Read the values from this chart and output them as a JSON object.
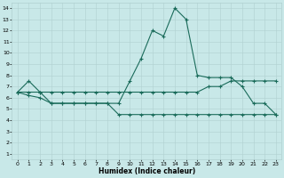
{
  "xlabel": "Humidex (Indice chaleur)",
  "xlim": [
    -0.5,
    23.5
  ],
  "ylim": [
    0.5,
    14.5
  ],
  "yticks": [
    1,
    2,
    3,
    4,
    5,
    6,
    7,
    8,
    9,
    10,
    11,
    12,
    13,
    14
  ],
  "xticks": [
    0,
    1,
    2,
    3,
    4,
    5,
    6,
    7,
    8,
    9,
    10,
    11,
    12,
    13,
    14,
    15,
    16,
    17,
    18,
    19,
    20,
    21,
    22,
    23
  ],
  "bg_color": "#c8e8e8",
  "grid_color": "#b0d0d0",
  "line_color": "#1a6b5a",
  "line1_x": [
    0,
    1,
    2,
    3,
    4,
    5,
    6,
    7,
    8,
    9,
    10,
    11,
    12,
    13,
    14,
    15,
    16,
    17,
    18,
    19,
    20,
    21,
    22,
    23
  ],
  "line1_y": [
    6.5,
    7.5,
    6.5,
    5.5,
    5.5,
    5.5,
    5.5,
    5.5,
    5.5,
    5.5,
    7.5,
    9.5,
    12.0,
    11.5,
    14.0,
    13.0,
    8.0,
    7.8,
    7.8,
    7.8,
    7.0,
    5.5,
    5.5,
    4.5
  ],
  "line2_x": [
    0,
    1,
    2,
    3,
    4,
    5,
    6,
    7,
    8,
    9,
    10,
    11,
    12,
    13,
    14,
    15,
    16,
    17,
    18,
    19,
    20,
    21,
    22,
    23
  ],
  "line2_y": [
    6.5,
    6.5,
    6.5,
    6.5,
    6.5,
    6.5,
    6.5,
    6.5,
    6.5,
    6.5,
    6.5,
    6.5,
    6.5,
    6.5,
    6.5,
    6.5,
    6.5,
    7.0,
    7.0,
    7.5,
    7.5,
    7.5,
    7.5,
    7.5
  ],
  "line3_x": [
    0,
    1,
    2,
    3,
    4,
    5,
    6,
    7,
    8,
    9,
    10,
    11,
    12,
    13,
    14,
    15,
    16,
    17,
    18,
    19,
    20,
    21,
    22,
    23
  ],
  "line3_y": [
    6.5,
    6.2,
    6.0,
    5.5,
    5.5,
    5.5,
    5.5,
    5.5,
    5.5,
    4.5,
    4.5,
    4.5,
    4.5,
    4.5,
    4.5,
    4.5,
    4.5,
    4.5,
    4.5,
    4.5,
    4.5,
    4.5,
    4.5,
    4.5
  ]
}
